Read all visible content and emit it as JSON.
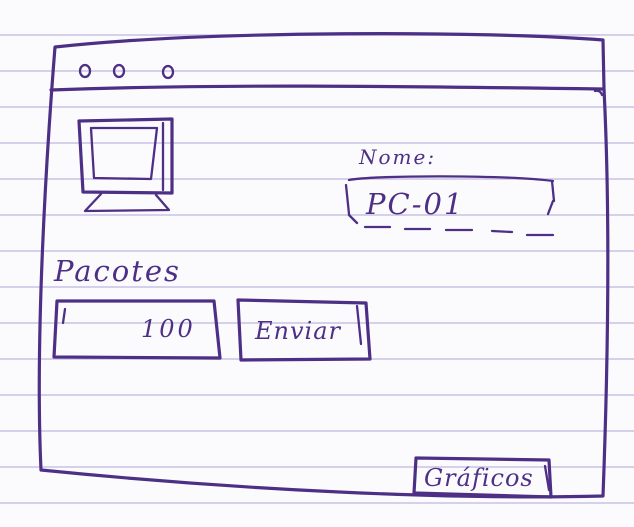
{
  "window": {
    "controls": [
      {
        "name": "control-1"
      },
      {
        "name": "control-2"
      },
      {
        "name": "control-3"
      }
    ]
  },
  "device": {
    "name_label": "Nome:",
    "name_value": "PC-01"
  },
  "packets": {
    "label": "Pacotes",
    "value": "100"
  },
  "actions": {
    "send_label": "Enviar",
    "charts_label": "Gráficos"
  },
  "colors": {
    "ink": "#4e2f86",
    "paper_lines": "#8a7acf"
  }
}
